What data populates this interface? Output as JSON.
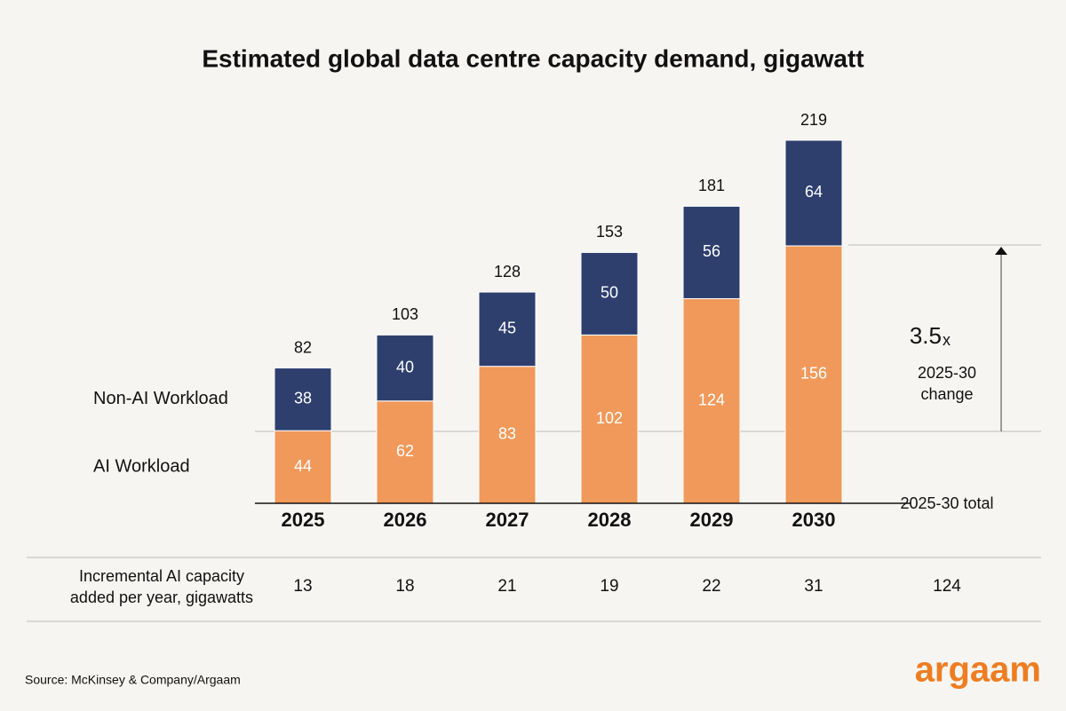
{
  "chart_data": {
    "type": "stacked_bar",
    "title": "Estimated global data centre capacity demand, gigawatt",
    "categories": [
      "2025",
      "2026",
      "2027",
      "2028",
      "2029",
      "2030"
    ],
    "series": [
      {
        "name": "AI Workload",
        "color": "#f0995a",
        "values": [
          44,
          62,
          83,
          102,
          124,
          156
        ]
      },
      {
        "name": "Non-AI Workload",
        "color": "#2e3f6e",
        "values": [
          38,
          40,
          45,
          50,
          56,
          64
        ]
      }
    ],
    "totals": [
      82,
      103,
      128,
      153,
      181,
      219
    ],
    "annotation": {
      "value": 3.5,
      "unit": "x",
      "label": "2025-30 change"
    }
  },
  "increment_table": {
    "label": "Incremental AI capacity added per year, gigawatts",
    "values": [
      13,
      18,
      21,
      19,
      22,
      31
    ],
    "total_header": "2025-30 total",
    "total": 124
  },
  "source": "Source: McKinsey & Company/Argaam",
  "logo": "argaam"
}
